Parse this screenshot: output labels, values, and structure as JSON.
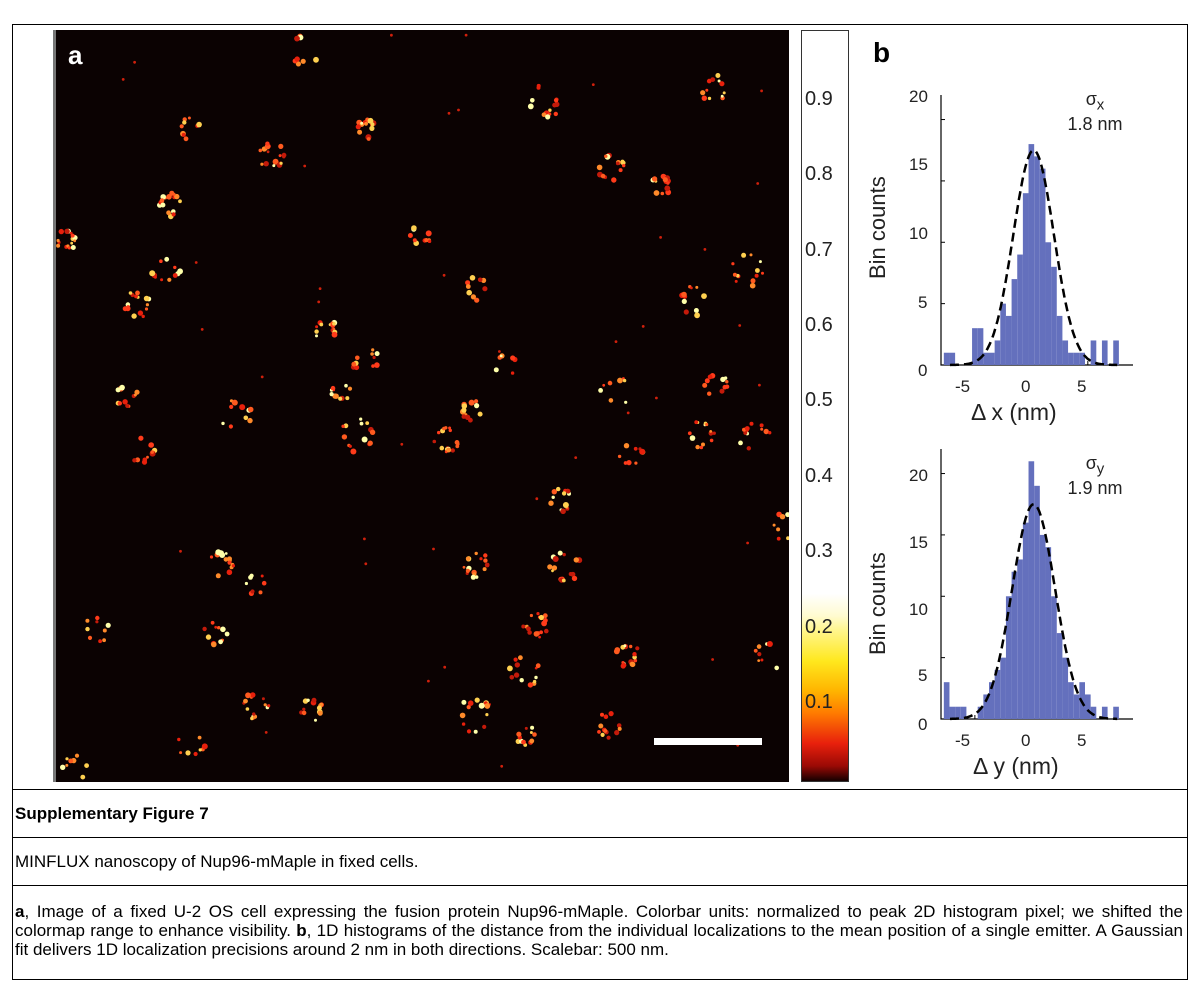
{
  "panel_a": {
    "label": "a"
  },
  "colorbar": {
    "ticks": [
      "0.9",
      "0.8",
      "0.7",
      "0.6",
      "0.5",
      "0.4",
      "0.3",
      "0.2",
      "0.1"
    ],
    "colormap": "hot"
  },
  "panel_b": {
    "label": "b",
    "hist_x": {
      "ylabel": "Bin counts",
      "xlabel": "Δ x (nm)",
      "sigma_symbol": "σ",
      "sigma_sub": "x",
      "sigma_value": "1.8 nm",
      "yticks": [
        "20",
        "15",
        "10",
        "5",
        "0"
      ],
      "xticks": [
        "-5",
        "0",
        "5"
      ]
    },
    "hist_y": {
      "ylabel": "Bin counts",
      "xlabel": "Δ y (nm)",
      "sigma_symbol": "σ",
      "sigma_sub": "y",
      "sigma_value": "1.9 nm",
      "yticks": [
        "20",
        "15",
        "10",
        "5",
        "0"
      ],
      "xticks": [
        "-5",
        "0",
        "5"
      ]
    }
  },
  "chart_data": [
    {
      "type": "bar",
      "xlabel": "Δ x (nm)",
      "ylabel": "Bin counts",
      "xlim": [
        -8,
        9
      ],
      "ylim": [
        0,
        22
      ],
      "bin_width": 0.5,
      "x": [
        -7.5,
        -7,
        -6.5,
        -6,
        -5.5,
        -5,
        -4.5,
        -4,
        -3.5,
        -3,
        -2.5,
        -2,
        -1.5,
        -1,
        -0.5,
        0,
        0.5,
        1,
        1.5,
        2,
        2.5,
        3,
        3.5,
        4,
        4.5,
        5,
        5.5,
        6,
        6.5,
        7,
        7.5
      ],
      "values": [
        1,
        1,
        0,
        0,
        0,
        3,
        3,
        1,
        1,
        2,
        5,
        4,
        7,
        9,
        14,
        18,
        17,
        16,
        10,
        8,
        4,
        2,
        1,
        1,
        1,
        0,
        2,
        0,
        2,
        0,
        2
      ],
      "fit": {
        "type": "gaussian",
        "amplitude": 17.5,
        "mean": 0.2,
        "sigma": 1.8
      }
    },
    {
      "type": "bar",
      "xlabel": "Δ y (nm)",
      "ylabel": "Bin counts",
      "xlim": [
        -8,
        9
      ],
      "ylim": [
        0,
        22
      ],
      "bin_width": 0.5,
      "x": [
        -7.5,
        -7,
        -6.5,
        -6,
        -5.5,
        -5,
        -4.5,
        -4,
        -3.5,
        -3,
        -2.5,
        -2,
        -1.5,
        -1,
        -0.5,
        0,
        0.5,
        1,
        1.5,
        2,
        2.5,
        3,
        3.5,
        4,
        4.5,
        5,
        5.5,
        6,
        6.5,
        7,
        7.5
      ],
      "values": [
        3,
        1,
        1,
        1,
        0,
        0,
        1,
        2,
        3,
        4,
        5,
        10,
        12,
        13,
        16,
        21,
        19,
        15,
        14,
        10,
        7,
        5,
        3,
        2,
        3,
        2,
        1,
        0,
        1,
        0,
        1
      ],
      "fit": {
        "type": "gaussian",
        "amplitude": 17.5,
        "mean": 0.2,
        "sigma": 1.9
      }
    }
  ],
  "figure_title": "Supplementary Figure 7",
  "figure_subtitle": "MINFLUX nanoscopy of Nup96-mMaple in fixed cells.",
  "caption": {
    "a_label": "a",
    "a_text": ", Image of a fixed U-2 OS cell expressing the fusion protein Nup96-mMaple. Colorbar units: normalized to peak 2D histogram pixel; we shifted the colormap range to enhance visibility. ",
    "b_label": "b",
    "b_text": ", 1D histograms of the distance from the individual localizations to the mean position of a single emitter. A Gaussian fit delivers 1D localization precisions around 2 nm in both directions. Scalebar: 500 nm."
  }
}
